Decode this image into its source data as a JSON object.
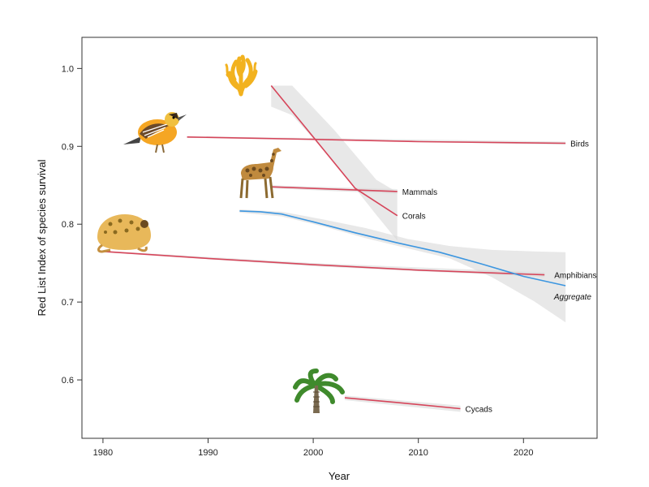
{
  "chart_data": {
    "type": "line",
    "xlabel": "Year",
    "ylabel": "Red List Index of species survival",
    "xlim": [
      1978,
      2027
    ],
    "ylim": [
      0.525,
      1.04
    ],
    "x_ticks": [
      1980,
      1990,
      2000,
      2010,
      2020
    ],
    "y_ticks": [
      0.6,
      0.7,
      0.8,
      0.9,
      1.0
    ],
    "y_tick_labels": [
      "0.6",
      "0.7",
      "0.8",
      "0.9",
      "1.0"
    ],
    "grid": false,
    "series": [
      {
        "name": "Birds",
        "color": "#d6455a",
        "icon": "bird-icon",
        "points": [
          [
            1988,
            0.912
          ],
          [
            2000,
            0.909
          ],
          [
            2010,
            0.906
          ],
          [
            2024,
            0.904
          ]
        ],
        "ci_upper": [
          [
            1988,
            0.913
          ],
          [
            2024,
            0.906
          ]
        ],
        "ci_lower": [
          [
            1988,
            0.911
          ],
          [
            2024,
            0.902
          ]
        ]
      },
      {
        "name": "Mammals",
        "color": "#d6455a",
        "icon": "giraffe-icon",
        "points": [
          [
            1996,
            0.848
          ],
          [
            2008,
            0.842
          ]
        ],
        "ci_upper": [
          [
            1996,
            0.85
          ],
          [
            2008,
            0.845
          ]
        ],
        "ci_lower": [
          [
            1996,
            0.846
          ],
          [
            2008,
            0.839
          ]
        ]
      },
      {
        "name": "Corals",
        "color": "#d6455a",
        "icon": "coral-icon",
        "points": [
          [
            1996,
            0.978
          ],
          [
            2000,
            0.912
          ],
          [
            2004,
            0.846
          ],
          [
            2008,
            0.811
          ]
        ],
        "ci_upper": [
          [
            1996,
            0.978
          ],
          [
            1998,
            0.978
          ],
          [
            2002,
            0.921
          ],
          [
            2006,
            0.857
          ],
          [
            2008,
            0.841
          ]
        ],
        "ci_lower": [
          [
            1996,
            0.951
          ],
          [
            1998,
            0.94
          ],
          [
            2002,
            0.88
          ],
          [
            2006,
            0.812
          ],
          [
            2008,
            0.779
          ]
        ]
      },
      {
        "name": "Amphibians",
        "color": "#d6455a",
        "icon": "frog-icon",
        "points": [
          [
            1980,
            0.765
          ],
          [
            1990,
            0.756
          ],
          [
            2000,
            0.748
          ],
          [
            2010,
            0.741
          ],
          [
            2022,
            0.735
          ]
        ],
        "ci_upper": [
          [
            1980,
            0.766
          ],
          [
            2000,
            0.75
          ],
          [
            2022,
            0.738
          ]
        ],
        "ci_lower": [
          [
            1980,
            0.764
          ],
          [
            2000,
            0.746
          ],
          [
            2022,
            0.732
          ]
        ]
      },
      {
        "name": "Aggregate",
        "color": "#3c96e0",
        "label_color": "#2c6bc4",
        "italic": true,
        "points": [
          [
            1993,
            0.817
          ],
          [
            1995,
            0.816
          ],
          [
            1997,
            0.813
          ],
          [
            2000,
            0.803
          ],
          [
            2004,
            0.789
          ],
          [
            2008,
            0.776
          ],
          [
            2012,
            0.764
          ],
          [
            2016,
            0.749
          ],
          [
            2020,
            0.733
          ],
          [
            2024,
            0.721
          ]
        ],
        "ci_upper": [
          [
            1993,
            0.819
          ],
          [
            1997,
            0.816
          ],
          [
            2001,
            0.806
          ],
          [
            2005,
            0.795
          ],
          [
            2009,
            0.781
          ],
          [
            2013,
            0.772
          ],
          [
            2017,
            0.767
          ],
          [
            2021,
            0.765
          ],
          [
            2024,
            0.764
          ]
        ],
        "ci_lower": [
          [
            1993,
            0.815
          ],
          [
            1997,
            0.81
          ],
          [
            2001,
            0.797
          ],
          [
            2005,
            0.782
          ],
          [
            2009,
            0.769
          ],
          [
            2013,
            0.756
          ],
          [
            2017,
            0.732
          ],
          [
            2021,
            0.701
          ],
          [
            2024,
            0.674
          ]
        ]
      },
      {
        "name": "Cycads",
        "color": "#d6455a",
        "icon": "palm-icon",
        "points": [
          [
            2003,
            0.577
          ],
          [
            2008,
            0.571
          ],
          [
            2014,
            0.563
          ]
        ],
        "ci_upper": [
          [
            2003,
            0.58
          ],
          [
            2014,
            0.567
          ]
        ],
        "ci_lower": [
          [
            2003,
            0.574
          ],
          [
            2014,
            0.559
          ]
        ]
      }
    ]
  }
}
